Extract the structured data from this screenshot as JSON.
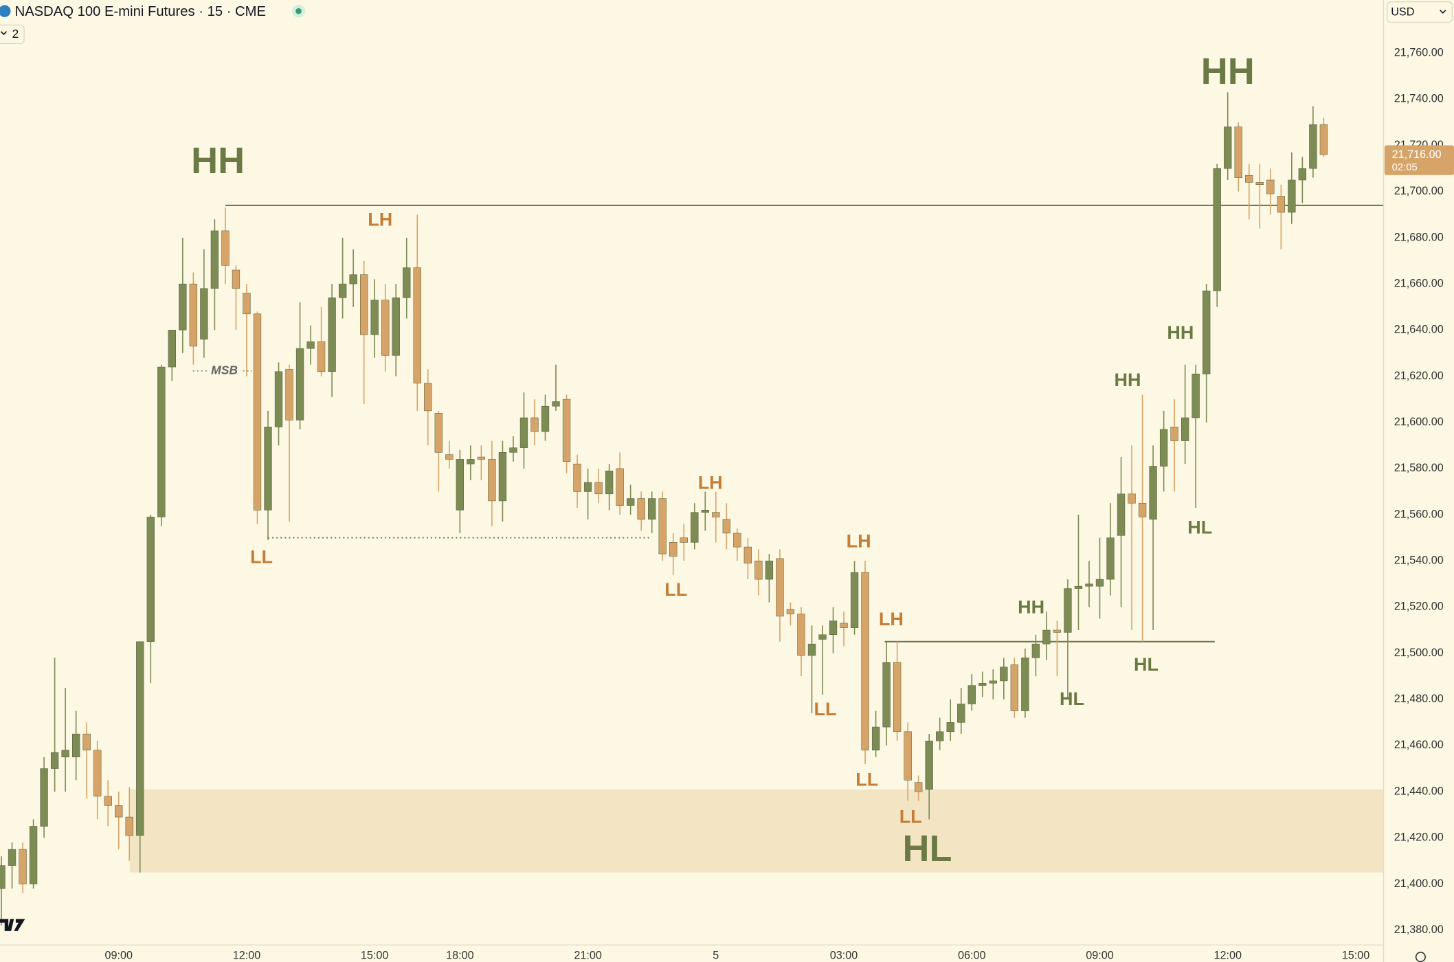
{
  "header": {
    "title": "NASDAQ 100 E-mini Futures · 15 · CME",
    "legend_count": "2",
    "currency": "USD"
  },
  "chart_data": {
    "type": "candlestick",
    "categories": [
      null,
      null,
      null,
      null,
      null,
      null,
      null,
      null,
      null,
      null,
      null,
      "09:00",
      null,
      null,
      null,
      null,
      null,
      null,
      null,
      null,
      null,
      null,
      null,
      "12:00",
      null,
      null,
      null,
      null,
      null,
      null,
      null,
      null,
      null,
      null,
      null,
      "15:00",
      null,
      null,
      null,
      null,
      null,
      null,
      null,
      "18:00",
      null,
      null,
      null,
      null,
      null,
      null,
      null,
      null,
      null,
      null,
      null,
      "21:00",
      null,
      null,
      null,
      null,
      null,
      null,
      null,
      null,
      null,
      null,
      null,
      "5",
      null,
      null,
      null,
      null,
      null,
      null,
      null,
      null,
      null,
      null,
      null,
      "03:00",
      null,
      null,
      null,
      null,
      null,
      null,
      null,
      null,
      null,
      null,
      null,
      "06:00",
      null,
      null,
      null,
      null,
      null,
      null,
      null,
      null,
      null,
      null,
      null,
      "09:00",
      null,
      null,
      null,
      null,
      null,
      null,
      null,
      null,
      null,
      null,
      null,
      "12:00",
      null,
      null,
      null,
      null,
      null,
      null,
      null,
      null,
      null,
      null,
      null,
      "15:00",
      null,
      null
    ],
    "open": [
      21398,
      21408,
      21415,
      21400,
      21425,
      21450,
      21455,
      21455,
      21465,
      21458,
      21438,
      21434,
      21429,
      21421,
      21505,
      21559,
      21624,
      21640,
      21660,
      21636,
      21658,
      21683,
      21666,
      21656,
      21647,
      21562,
      21598,
      21623,
      21601,
      21632,
      21635,
      21622,
      21654,
      21660,
      21664,
      21638,
      21653,
      21629,
      21654,
      21667,
      21617,
      21604,
      21586,
      21562,
      21582,
      21585,
      21584,
      21566,
      21587,
      21589,
      21602,
      21596,
      21607,
      21610,
      21582,
      21570,
      21574,
      21569,
      21580,
      21564,
      21567,
      21558,
      21567,
      21548,
      21550,
      21548,
      21561,
      21561,
      21558,
      21552,
      21546,
      21540,
      21532,
      21541,
      21519,
      21517,
      21499,
      21506,
      21508,
      21513,
      21511,
      21535,
      21458,
      21468,
      21496,
      21466,
      21444,
      21441,
      21462,
      21466,
      21470,
      21478,
      21486,
      21487,
      21488,
      21495,
      21475,
      21498,
      21504,
      21510,
      21509,
      21528,
      21529,
      21529,
      21532,
      21551,
      21569,
      21565,
      21558,
      21581,
      21598,
      21592,
      21602,
      21621,
      21657,
      21710,
      21728,
      21707,
      21704,
      21705,
      21698,
      21691,
      21705,
      21710,
      21729,
      null,
      null,
      null,
      null,
      null
    ],
    "high": [
      21412,
      21418,
      21418,
      21428,
      21455,
      21498,
      21485,
      21475,
      21470,
      21462,
      21445,
      21440,
      21442,
      21505,
      21560,
      21625,
      21640,
      21680,
      21665,
      21675,
      21688,
      21693,
      21668,
      21660,
      21648,
      21605,
      21626,
      21625,
      21652,
      21642,
      21650,
      21660,
      21680,
      21675,
      21670,
      21662,
      21660,
      21660,
      21680,
      21690,
      21623,
      21605,
      21592,
      21588,
      21590,
      21590,
      21592,
      21592,
      21594,
      21613,
      21610,
      21612,
      21625,
      21612,
      21586,
      21580,
      21580,
      21582,
      21587,
      21573,
      21570,
      21570,
      21570,
      21552,
      21556,
      21565,
      21570,
      21570,
      21565,
      21554,
      21550,
      21545,
      21543,
      21545,
      21522,
      21520,
      21512,
      21512,
      21520,
      21518,
      21540,
      21540,
      21475,
      21505,
      21505,
      21470,
      21447,
      21465,
      21472,
      21480,
      21485,
      21491,
      21492,
      21493,
      21498,
      21498,
      21502,
      21508,
      21518,
      21514,
      21532,
      21560,
      21540,
      21550,
      21565,
      21585,
      21590,
      21612,
      21590,
      21605,
      21610,
      21625,
      21625,
      21660,
      21712,
      21743,
      21730,
      21712,
      21712,
      21710,
      21703,
      21717,
      21715,
      21737,
      21732,
      null,
      null,
      null,
      null,
      null
    ],
    "low": [
      21382,
      21398,
      21396,
      21398,
      21420,
      21440,
      21440,
      21445,
      21437,
      21428,
      21425,
      21415,
      21410,
      21405,
      21487,
      21555,
      21618,
      21630,
      21625,
      21628,
      21640,
      21660,
      21640,
      21620,
      21556,
      21549,
      21590,
      21557,
      21597,
      21625,
      21620,
      21611,
      21645,
      21650,
      21608,
      21628,
      21622,
      21620,
      21645,
      21605,
      21590,
      21570,
      21580,
      21552,
      21575,
      21575,
      21555,
      21557,
      21583,
      21580,
      21590,
      21592,
      21605,
      21578,
      21563,
      21558,
      21565,
      21562,
      21560,
      21560,
      21553,
      21552,
      21540,
      21534,
      21540,
      21545,
      21553,
      21548,
      21545,
      21540,
      21532,
      21525,
      21522,
      21505,
      21512,
      21490,
      21474,
      21482,
      21500,
      21503,
      21508,
      21452,
      21455,
      21460,
      21462,
      21436,
      21436,
      21428,
      21458,
      21462,
      21465,
      21475,
      21481,
      21480,
      21480,
      21472,
      21472,
      21490,
      21497,
      21490,
      21480,
      21510,
      21520,
      21515,
      21525,
      21520,
      21510,
      21505,
      21510,
      21570,
      21570,
      21582,
      21563,
      21600,
      21650,
      21705,
      21700,
      21688,
      21684,
      21690,
      21675,
      21686,
      21695,
      21706,
      21715,
      null,
      null,
      null,
      null,
      null
    ],
    "close": [
      21408,
      21415,
      21400,
      21425,
      21450,
      21457,
      21458,
      21465,
      21458,
      21438,
      21434,
      21429,
      21421,
      21505,
      21559,
      21624,
      21640,
      21660,
      21633,
      21658,
      21683,
      21668,
      21658,
      21647,
      21562,
      21598,
      21622,
      21601,
      21632,
      21635,
      21622,
      21654,
      21660,
      21664,
      21638,
      21653,
      21629,
      21654,
      21667,
      21617,
      21605,
      21587,
      21584,
      21584,
      21584,
      21584,
      21566,
      21587,
      21589,
      21602,
      21596,
      21607,
      21609,
      21583,
      21570,
      21574,
      21569,
      21579,
      21564,
      21567,
      21558,
      21567,
      21543,
      21542,
      21548,
      21561,
      21562,
      21559,
      21552,
      21546,
      21539,
      21532,
      21540,
      21516,
      21517,
      21499,
      21504,
      21508,
      21514,
      21511,
      21535,
      21458,
      21468,
      21496,
      21466,
      21445,
      21440,
      21462,
      21466,
      21470,
      21478,
      21486,
      21487,
      21488,
      21494,
      21475,
      21498,
      21504,
      21510,
      21509,
      21528,
      21529,
      21530,
      21532,
      21550,
      21569,
      21565,
      21559,
      21581,
      21597,
      21592,
      21602,
      21621,
      21657,
      21710,
      21728,
      21706,
      21704,
      21703,
      21699,
      21691,
      21705,
      21710,
      21729,
      21716,
      null,
      null,
      null,
      null,
      null
    ],
    "up_color": "#7d8b55",
    "down_color": "#d6a468",
    "ylim": [
      21374,
      21783
    ],
    "yticks": [
      {
        "value": 21380,
        "label": "21,380.00"
      },
      {
        "value": 21400,
        "label": "21,400.00"
      },
      {
        "value": 21420,
        "label": "21,420.00"
      },
      {
        "value": 21440,
        "label": "21,440.00"
      },
      {
        "value": 21460,
        "label": "21,460.00"
      },
      {
        "value": 21480,
        "label": "21,480.00"
      },
      {
        "value": 21500,
        "label": "21,500.00"
      },
      {
        "value": 21520,
        "label": "21,520.00"
      },
      {
        "value": 21540,
        "label": "21,540.00"
      },
      {
        "value": 21560,
        "label": "21,560.00"
      },
      {
        "value": 21580,
        "label": "21,580.00"
      },
      {
        "value": 21600,
        "label": "21,600.00"
      },
      {
        "value": 21620,
        "label": "21,620.00"
      },
      {
        "value": 21640,
        "label": "21,640.00"
      },
      {
        "value": 21660,
        "label": "21,660.00"
      },
      {
        "value": 21680,
        "label": "21,680.00"
      },
      {
        "value": 21700,
        "label": "21,700.00"
      },
      {
        "value": 21720,
        "label": "21,720.00"
      },
      {
        "value": 21740,
        "label": "21,740.00"
      },
      {
        "value": 21760,
        "label": "21,760.00"
      }
    ],
    "grid": false,
    "last_price": {
      "value": 21716,
      "label": "21,716.00"
    },
    "countdown": "02:05",
    "levels": [
      21694,
      21550,
      21505
    ],
    "level_color": "#6f7a55",
    "zone": [
      21405,
      21441
    ],
    "zone_color": "#f3e5c3",
    "annotations": [
      "HH",
      "MSB",
      "LH",
      "LL",
      "LH",
      "LL",
      "LH",
      "LH",
      "LL",
      "LL",
      "LL",
      "HL",
      "HH",
      "HL",
      "HL",
      "HH",
      "HH",
      "HL",
      "HH"
    ]
  }
}
